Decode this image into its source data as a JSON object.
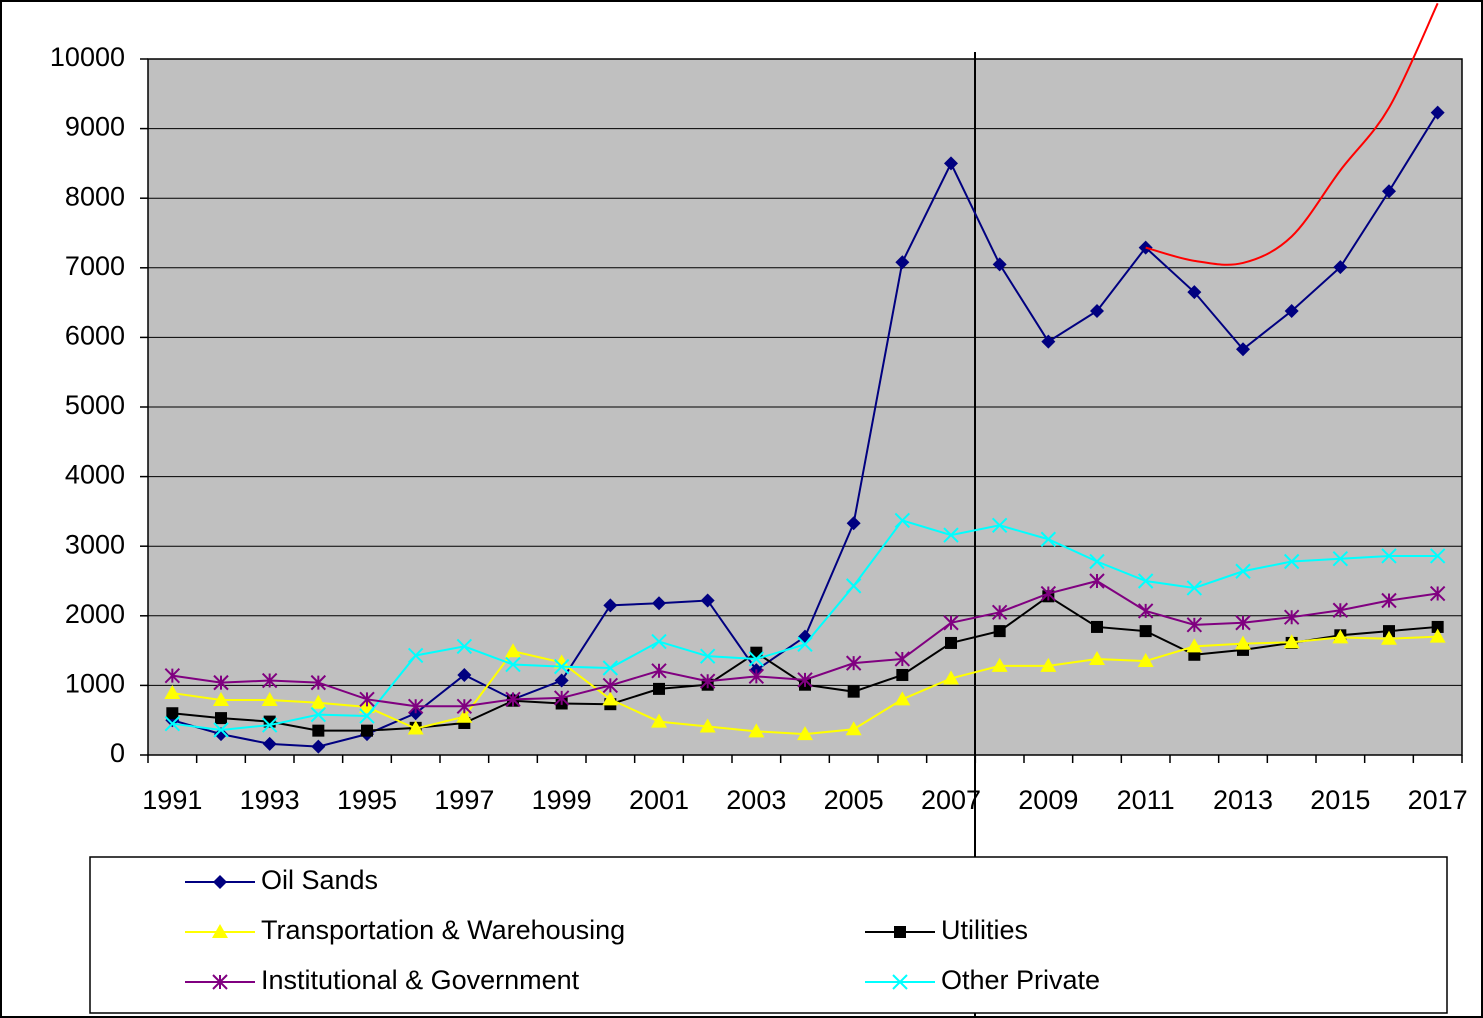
{
  "chart_data": {
    "type": "line",
    "categories": [
      "1991",
      null,
      "1993",
      null,
      "1995",
      null,
      "1997",
      null,
      "1999",
      null,
      "2001",
      null,
      "2003",
      null,
      "2005",
      null,
      "2007",
      null,
      "2009",
      null,
      "2011",
      null,
      "2013",
      null,
      "2015",
      null,
      "2017"
    ],
    "series": [
      {
        "name": "Oil Sands",
        "color": "#000080",
        "marker": "diamond",
        "values": [
          500,
          300,
          160,
          120,
          300,
          600,
          1150,
          800,
          1070,
          2150,
          2180,
          2220,
          1220,
          1700,
          3330,
          7080,
          8500,
          7050,
          5940,
          6380,
          7290,
          6650,
          5830,
          6380,
          7010,
          8100,
          9230
        ]
      },
      {
        "name": "Utilities",
        "color": "#000000",
        "marker": "square",
        "values": [
          600,
          530,
          480,
          350,
          350,
          390,
          460,
          780,
          740,
          730,
          950,
          1010,
          1470,
          1010,
          910,
          1150,
          1610,
          1780,
          2280,
          1840,
          1780,
          1440,
          1510,
          1610,
          1720,
          1780,
          1840
        ]
      },
      {
        "name": "Transportation & Warehousing",
        "color": "#ffff00",
        "marker": "triangle",
        "values": [
          890,
          790,
          790,
          750,
          690,
          380,
          550,
          1490,
          1330,
          800,
          480,
          410,
          340,
          300,
          370,
          800,
          1100,
          1280,
          1280,
          1380,
          1350,
          1560,
          1600,
          1620,
          1690,
          1670,
          1700
        ]
      },
      {
        "name": "Other Private",
        "color": "#00ffff",
        "marker": "x",
        "values": [
          450,
          360,
          430,
          580,
          560,
          1430,
          1560,
          1300,
          1270,
          1250,
          1630,
          1420,
          1380,
          1590,
          2430,
          3370,
          3160,
          3300,
          3100,
          2780,
          2500,
          2400,
          2640,
          2780,
          2820,
          2860,
          2860
        ]
      },
      {
        "name": "Institutional & Government",
        "color": "#800080",
        "marker": "asterisk",
        "values": [
          1140,
          1040,
          1070,
          1040,
          800,
          700,
          700,
          800,
          820,
          1000,
          1210,
          1060,
          1130,
          1080,
          1320,
          1380,
          1900,
          2050,
          2320,
          2500,
          2070,
          1870,
          1900,
          1980,
          2080,
          2220,
          2320
        ]
      },
      {
        "color": "#ff0000",
        "smooth": true,
        "values": [
          null,
          null,
          null,
          null,
          null,
          null,
          null,
          null,
          null,
          null,
          null,
          null,
          null,
          null,
          null,
          null,
          null,
          null,
          null,
          null,
          7290,
          7100,
          7070,
          7450,
          8400,
          9300,
          10800
        ]
      }
    ],
    "ylim": [
      0,
      10000
    ],
    "yticks": [
      0,
      1000,
      2000,
      3000,
      4000,
      5000,
      6000,
      7000,
      8000,
      9000,
      10000
    ],
    "grid": true,
    "plot_background": "#c0c0c0",
    "legend": "bottom"
  }
}
